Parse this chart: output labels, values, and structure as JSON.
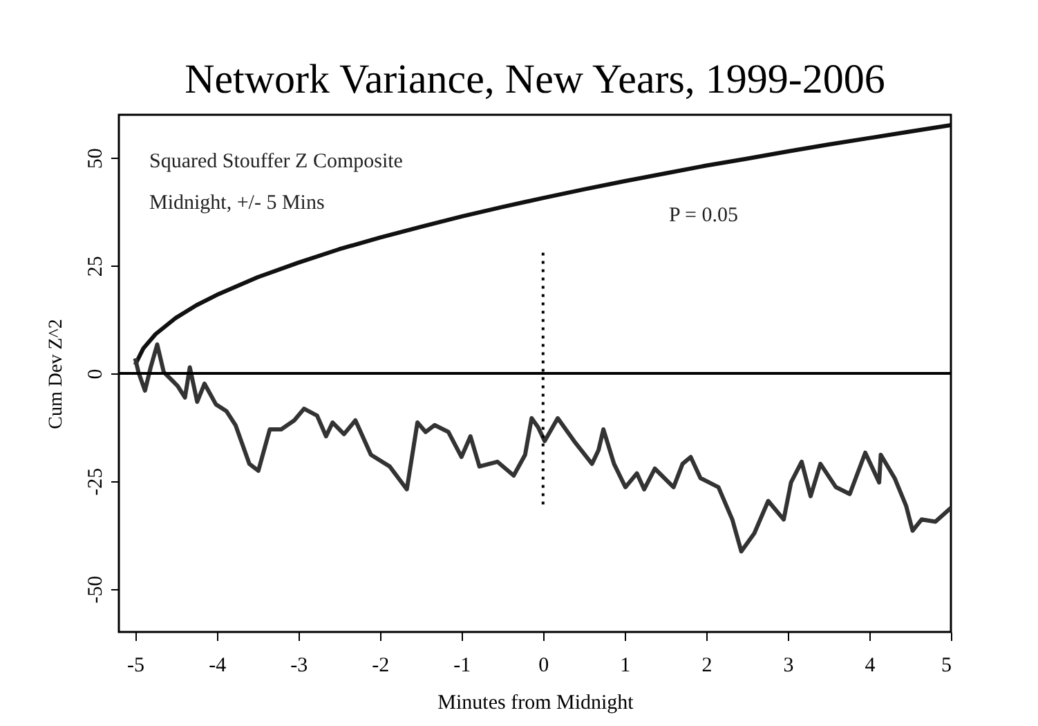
{
  "chart_data": {
    "type": "line",
    "title": "Network Variance, New Years, 1999-2006",
    "xlabel": "Minutes from Midnight",
    "ylabel": "Cum Dev Z^2",
    "annotations": [
      "Squared Stouffer Z Composite",
      "Midnight, +/- 5 Mins",
      "P = 0.05"
    ],
    "xlim": [
      -5.2,
      5
    ],
    "ylim": [
      -60,
      60
    ],
    "xticks": [
      -5,
      -4,
      -3,
      -2,
      -1,
      0,
      1,
      2,
      3,
      4,
      5
    ],
    "yticks": [
      -50,
      -25,
      0,
      25,
      50
    ],
    "ref_lines": [
      {
        "axis": "y",
        "value": 0,
        "color": "#000000",
        "line_style": "solid"
      }
    ],
    "marker": "none",
    "grid": false,
    "series": [
      {
        "color": "#111111",
        "x": [
          -5,
          -4.9,
          -4.75,
          -4.5,
          -4.25,
          -4,
          -3.5,
          -3,
          -2.5,
          -2,
          -1.5,
          -1,
          -0.5,
          0,
          0.5,
          1,
          1.5,
          2,
          2.5,
          3,
          3.5,
          4,
          4.5,
          5
        ],
        "values": [
          2,
          5.8,
          9.1,
          12.9,
          15.8,
          18.2,
          22.3,
          25.7,
          28.8,
          31.5,
          34,
          36.4,
          38.6,
          40.7,
          42.7,
          44.6,
          46.4,
          48.2,
          49.8,
          51.5,
          53.1,
          54.6,
          56.1,
          57.6
        ]
      },
      {
        "color": "#333333",
        "x": [
          -5,
          -4.96,
          -4.88,
          -4.81,
          -4.73,
          -4.65,
          -4.48,
          -4.39,
          -4.33,
          -4.24,
          -4.15,
          -4.01,
          -3.88,
          -3.77,
          -3.6,
          -3.49,
          -3.35,
          -3.21,
          -3.05,
          -2.93,
          -2.77,
          -2.66,
          -2.58,
          -2.44,
          -2.3,
          -2.11,
          -1.88,
          -1.67,
          -1.54,
          -1.44,
          -1.33,
          -1.16,
          -1,
          -0.89,
          -0.78,
          -0.56,
          -0.36,
          -0.22,
          -0.14,
          -0.06,
          0.02,
          0.18,
          0.38,
          0.6,
          0.68,
          0.74,
          0.87,
          1.01,
          1.15,
          1.24,
          1.37,
          1.6,
          1.71,
          1.81,
          1.93,
          2.15,
          2.32,
          2.43,
          2.59,
          2.76,
          2.95,
          3.04,
          3.17,
          3.28,
          3.4,
          3.59,
          3.76,
          3.95,
          4.12,
          4.14,
          4.31,
          4.45,
          4.53,
          4.64,
          4.81,
          5
        ],
        "values": [
          3.5,
          0.3,
          -4,
          1.4,
          6.7,
          0.3,
          -2.9,
          -5.6,
          1.4,
          -6.6,
          -2.4,
          -7.2,
          -8.8,
          -12,
          -21,
          -22.6,
          -13,
          -13,
          -10.9,
          -8.2,
          -9.8,
          -14.6,
          -11.4,
          -14.1,
          -10.9,
          -18.9,
          -21.6,
          -26.9,
          -11.4,
          -13.6,
          -12,
          -13.6,
          -19.4,
          -14.6,
          -21.6,
          -20.5,
          -23.7,
          -18.9,
          -10.4,
          -12.5,
          -15.7,
          -10.4,
          -15.7,
          -21,
          -17.8,
          -13,
          -21,
          -26.4,
          -23.2,
          -26.9,
          -22.1,
          -26.4,
          -21,
          -19.4,
          -24.3,
          -26.4,
          -33.9,
          -41.3,
          -37.1,
          -29.6,
          -33.9,
          -25.3,
          -20.5,
          -28.5,
          -21,
          -26.4,
          -28,
          -18.4,
          -25.3,
          -18.9,
          -24.3,
          -30.7,
          -36.5,
          -33.9,
          -34.4,
          -31.2
        ]
      },
      {
        "color": "#000000",
        "line_style": "dotted",
        "x": [
          0,
          0
        ],
        "values": [
          28,
          -31
        ]
      }
    ]
  }
}
